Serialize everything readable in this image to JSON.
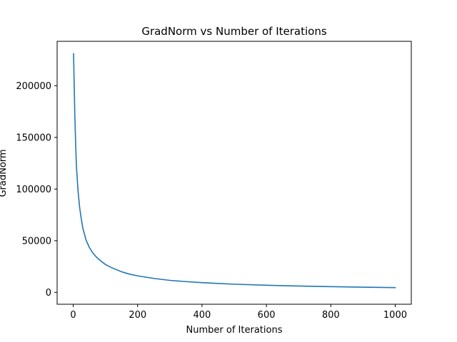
{
  "chart_data": {
    "type": "line",
    "title": "GradNorm vs Number of Iterations",
    "xlabel": "Number of Iterations",
    "ylabel": "GradNorm",
    "xlim": [
      -50,
      1050
    ],
    "ylim": [
      -11500,
      243000
    ],
    "xticks": [
      0,
      200,
      400,
      600,
      800,
      1000
    ],
    "yticks": [
      0,
      50000,
      100000,
      150000,
      200000
    ],
    "grid": false,
    "legend": "none",
    "series": [
      {
        "color": "#1f77b4",
        "x": [
          1,
          3,
          5,
          8,
          10,
          15,
          20,
          25,
          30,
          40,
          50,
          60,
          70,
          80,
          100,
          120,
          150,
          175,
          200,
          250,
          300,
          350,
          400,
          450,
          500,
          600,
          700,
          800,
          900,
          1000
        ],
        "y": [
          231000,
          201000,
          171000,
          139000,
          122000,
          98000,
          82000,
          71000,
          62000,
          50500,
          43500,
          38500,
          34800,
          31800,
          27000,
          23800,
          20000,
          17600,
          16000,
          13500,
          11600,
          10400,
          9400,
          8600,
          7900,
          6900,
          6100,
          5500,
          5000,
          4600
        ]
      }
    ]
  }
}
